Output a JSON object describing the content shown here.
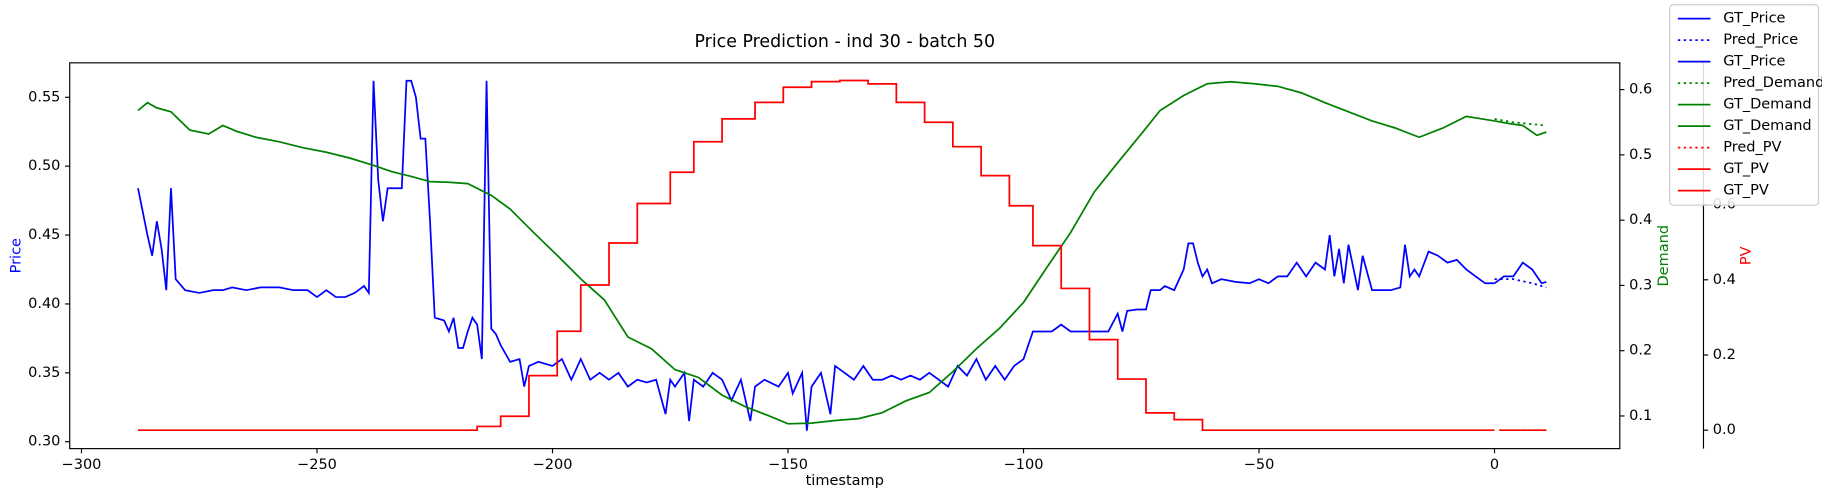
{
  "chart_data": {
    "type": "line",
    "title": "Price Prediction - ind 30 - batch 50",
    "xlabel": "timestamp",
    "ylabel": "Price",
    "y2label": "Demand",
    "y3label": "PV",
    "ylabel_color": "#0000ff",
    "y2label_color": "#008000",
    "y3label_color": "#ff0000",
    "xlim": [
      -302.5,
      26.6
    ],
    "xticks": [
      {
        "value": -300,
        "label": "−300"
      },
      {
        "value": -250,
        "label": "−250"
      },
      {
        "value": -200,
        "label": "−200"
      },
      {
        "value": -150,
        "label": "−150"
      },
      {
        "value": -100,
        "label": "−100"
      },
      {
        "value": -50,
        "label": "−50"
      },
      0
    ],
    "ylim": [
      0.295,
      0.575
    ],
    "yticks": [
      {
        "value": 0.3,
        "label": "0.30"
      },
      0.35,
      {
        "value": 0.4,
        "label": "0.40"
      },
      0.45,
      {
        "value": 0.5,
        "label": "0.50"
      },
      0.55
    ],
    "y2lim": [
      0.05,
      0.641
    ],
    "y2ticks": [
      0.1,
      0.2,
      0.3,
      0.4,
      0.5,
      0.6
    ],
    "y3lim": [
      -0.049,
      0.977
    ],
    "y3ticks": [
      {
        "value": 0,
        "label": "0.0"
      },
      0.2,
      0.4,
      0.6
    ],
    "legend": "upper right",
    "series": [
      {
        "name": "GT_Price",
        "color": "#0000ff",
        "style": "solid",
        "axis": "y",
        "x": [
          -288,
          -286,
          -285,
          -284,
          -283,
          -282,
          -281,
          -280,
          -278,
          -275,
          -272,
          -270,
          -268,
          -265,
          -262,
          -258,
          -255,
          -252,
          -250,
          -248,
          -246,
          -244,
          -242,
          -240,
          -239,
          -238,
          -237,
          -236,
          -235,
          -232,
          -231,
          -230,
          -229,
          -228,
          -227,
          -226,
          -225,
          -223,
          -222,
          -221,
          -220,
          -219,
          -218,
          -217,
          -216,
          -215,
          -214,
          -213,
          -212,
          -211,
          -209,
          -207,
          -206,
          -205,
          -203,
          -200,
          -198,
          -196,
          -194,
          -192,
          -190,
          -188,
          -186,
          -184,
          -182,
          -180,
          -178,
          -176,
          -175,
          -174,
          -172,
          -171,
          -170,
          -168,
          -166,
          -164,
          -162,
          -160,
          -158,
          -157,
          -155,
          -152,
          -150,
          -149,
          -147,
          -146,
          -145,
          -143,
          -141,
          -140,
          -138,
          -136,
          -134,
          -132,
          -130,
          -128,
          -126,
          -124,
          -122,
          -120,
          -118,
          -116,
          -114,
          -112,
          -110,
          -108,
          -106,
          -104,
          -102,
          -100,
          -98,
          -96,
          -94,
          -92,
          -90,
          -88,
          -86,
          -84,
          -82,
          -80,
          -79,
          -78,
          -76,
          -74,
          -73,
          -71,
          -70,
          -68,
          -66,
          -65,
          -64,
          -63,
          -62,
          -61,
          -60,
          -58,
          -55,
          -52,
          -50,
          -48,
          -46,
          -44,
          -42,
          -40,
          -38,
          -36,
          -35,
          -34,
          -33,
          -32,
          -31,
          -29,
          -28,
          -26,
          -24,
          -22,
          -20,
          -19,
          -18,
          -17,
          -16,
          -14,
          -12,
          -10,
          -8,
          -6,
          -4,
          -2,
          0
        ],
        "values": [
          0.484,
          0.45,
          0.435,
          0.46,
          0.44,
          0.41,
          0.484,
          0.418,
          0.41,
          0.408,
          0.41,
          0.41,
          0.412,
          0.41,
          0.412,
          0.412,
          0.41,
          0.41,
          0.405,
          0.41,
          0.405,
          0.405,
          0.408,
          0.413,
          0.408,
          0.562,
          0.49,
          0.46,
          0.484,
          0.484,
          0.562,
          0.562,
          0.55,
          0.52,
          0.52,
          0.46,
          0.39,
          0.388,
          0.38,
          0.39,
          0.368,
          0.368,
          0.38,
          0.39,
          0.385,
          0.36,
          0.562,
          0.382,
          0.378,
          0.37,
          0.358,
          0.36,
          0.34,
          0.355,
          0.358,
          0.355,
          0.36,
          0.345,
          0.36,
          0.345,
          0.35,
          0.345,
          0.35,
          0.34,
          0.345,
          0.343,
          0.345,
          0.32,
          0.345,
          0.34,
          0.35,
          0.315,
          0.345,
          0.34,
          0.35,
          0.345,
          0.33,
          0.345,
          0.315,
          0.34,
          0.345,
          0.34,
          0.35,
          0.335,
          0.35,
          0.308,
          0.34,
          0.35,
          0.32,
          0.355,
          0.35,
          0.345,
          0.355,
          0.345,
          0.345,
          0.348,
          0.345,
          0.348,
          0.345,
          0.35,
          0.345,
          0.34,
          0.355,
          0.348,
          0.36,
          0.345,
          0.355,
          0.345,
          0.355,
          0.36,
          0.38,
          0.38,
          0.38,
          0.385,
          0.38,
          0.38,
          0.38,
          0.38,
          0.38,
          0.393,
          0.38,
          0.395,
          0.396,
          0.396,
          0.41,
          0.41,
          0.413,
          0.41,
          0.425,
          0.444,
          0.444,
          0.43,
          0.42,
          0.425,
          0.415,
          0.418,
          0.416,
          0.415,
          0.418,
          0.415,
          0.42,
          0.42,
          0.43,
          0.42,
          0.43,
          0.425,
          0.45,
          0.42,
          0.44,
          0.415,
          0.443,
          0.41,
          0.435,
          0.41,
          0.41,
          0.41,
          0.412,
          0.443,
          0.42,
          0.425,
          0.42,
          0.438,
          0.435,
          0.43,
          0.432,
          0.425,
          0.42,
          0.415,
          0.415
        ]
      },
      {
        "name": "Pred_Price",
        "color": "#0000ff",
        "style": "dotted",
        "axis": "y",
        "x": [
          0,
          4,
          8,
          11
        ],
        "values": [
          0.418,
          0.418,
          0.415,
          0.412
        ]
      },
      {
        "name": "GT_Price",
        "color": "#0000ff",
        "style": "solid",
        "axis": "y",
        "x": [
          0,
          2,
          4,
          6,
          8,
          10,
          11
        ],
        "values": [
          0.415,
          0.42,
          0.42,
          0.43,
          0.425,
          0.415,
          0.416
        ]
      },
      {
        "name": "Pred_Demand",
        "color": "#008000",
        "style": "dotted",
        "axis": "y2",
        "x": [
          0,
          4,
          8,
          11
        ],
        "values": [
          0.555,
          0.55,
          0.547,
          0.545
        ]
      },
      {
        "name": "GT_Demand",
        "color": "#008000",
        "style": "solid",
        "axis": "y2",
        "x": [
          -288,
          -286,
          -284,
          -281,
          -279,
          -277,
          -273,
          -270,
          -267,
          -263,
          -258,
          -253,
          -248,
          -243,
          -238,
          -234,
          -230,
          -226,
          -222,
          -218,
          -213,
          -209,
          -204,
          -199,
          -194,
          -189,
          -184,
          -179,
          -174,
          -169,
          -164,
          -159,
          -154,
          -150,
          -145,
          -140,
          -135,
          -130,
          -125,
          -120,
          -115,
          -110,
          -105,
          -100,
          -95,
          -90,
          -85,
          -80,
          -75,
          -71,
          -66,
          -61,
          -56,
          -51,
          -46,
          -41,
          -36,
          -31,
          -26,
          -21,
          -16,
          -11,
          -6,
          0
        ],
        "values": [
          0.568,
          0.58,
          0.572,
          0.566,
          0.552,
          0.538,
          0.532,
          0.545,
          0.536,
          0.527,
          0.52,
          0.511,
          0.504,
          0.495,
          0.484,
          0.474,
          0.467,
          0.459,
          0.458,
          0.456,
          0.438,
          0.417,
          0.381,
          0.346,
          0.31,
          0.278,
          0.221,
          0.203,
          0.171,
          0.159,
          0.132,
          0.114,
          0.1,
          0.088,
          0.089,
          0.093,
          0.096,
          0.105,
          0.123,
          0.136,
          0.168,
          0.203,
          0.235,
          0.274,
          0.328,
          0.381,
          0.443,
          0.488,
          0.532,
          0.568,
          0.591,
          0.609,
          0.612,
          0.609,
          0.605,
          0.595,
          0.58,
          0.566,
          0.552,
          0.541,
          0.527,
          0.541,
          0.559,
          0.552
        ]
      },
      {
        "name": "GT_Demand",
        "color": "#008000",
        "style": "solid",
        "axis": "y2",
        "x": [
          0,
          3,
          6,
          9,
          11
        ],
        "values": [
          0.552,
          0.548,
          0.545,
          0.53,
          0.535
        ]
      },
      {
        "name": "Pred_PV",
        "color": "#ff0000",
        "style": "dotted",
        "axis": "y3",
        "x": [
          1,
          11
        ],
        "values": [
          0,
          0
        ]
      },
      {
        "name": "GT_PV",
        "color": "#ff0000",
        "style": "solid",
        "axis": "y3",
        "x": [
          -288,
          -216,
          -216,
          -211,
          -211,
          -205,
          -205,
          -199,
          -199,
          -194,
          -194,
          -188,
          -188,
          -182,
          -182,
          -175,
          -175,
          -170,
          -170,
          -164,
          -164,
          -157,
          -157,
          -151,
          -151,
          -145,
          -145,
          -139,
          -139,
          -133,
          -133,
          -127,
          -127,
          -121,
          -121,
          -115,
          -115,
          -109,
          -109,
          -103,
          -103,
          -98,
          -98,
          -92,
          -92,
          -86,
          -86,
          -80,
          -80,
          -74,
          -74,
          -68,
          -68,
          -62,
          -62,
          0
        ],
        "values": [
          0,
          0,
          0.01,
          0.01,
          0.037,
          0.037,
          0.145,
          0.145,
          0.263,
          0.263,
          0.386,
          0.386,
          0.498,
          0.498,
          0.603,
          0.603,
          0.686,
          0.686,
          0.767,
          0.767,
          0.828,
          0.828,
          0.872,
          0.872,
          0.912,
          0.912,
          0.927,
          0.927,
          0.93,
          0.93,
          0.921,
          0.921,
          0.872,
          0.872,
          0.819,
          0.819,
          0.754,
          0.754,
          0.677,
          0.677,
          0.597,
          0.597,
          0.491,
          0.491,
          0.377,
          0.377,
          0.241,
          0.241,
          0.136,
          0.136,
          0.046,
          0.046,
          0.028,
          0.028,
          0,
          0
        ]
      },
      {
        "name": "GT_PV",
        "color": "#ff0000",
        "style": "solid",
        "axis": "y3",
        "x": [
          1,
          11
        ],
        "values": [
          0,
          0
        ]
      }
    ]
  }
}
